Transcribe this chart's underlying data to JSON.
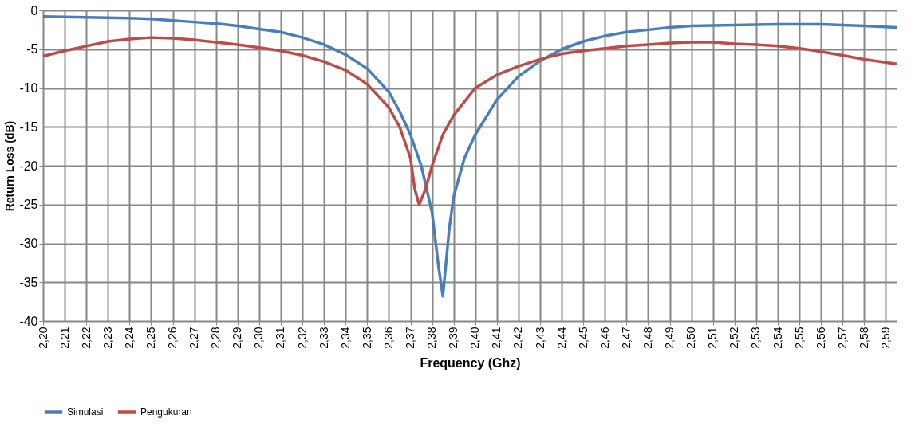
{
  "chart_data": {
    "type": "line",
    "xlabel": "Frequency (Ghz)",
    "ylabel": "Return Loss (dB)",
    "xlim": [
      2.2,
      2.595
    ],
    "ylim": [
      -40,
      0
    ],
    "xticks": [
      {
        "value": 2.2,
        "label": "2,20"
      },
      {
        "value": 2.21,
        "label": "2,21"
      },
      {
        "value": 2.22,
        "label": "2,22"
      },
      {
        "value": 2.23,
        "label": "2,23"
      },
      {
        "value": 2.24,
        "label": "2,24"
      },
      {
        "value": 2.25,
        "label": "2,25"
      },
      {
        "value": 2.26,
        "label": "2,26"
      },
      {
        "value": 2.27,
        "label": "2,27"
      },
      {
        "value": 2.28,
        "label": "2,28"
      },
      {
        "value": 2.29,
        "label": "2,29"
      },
      {
        "value": 2.3,
        "label": "2,30"
      },
      {
        "value": 2.31,
        "label": "2,31"
      },
      {
        "value": 2.32,
        "label": "2,32"
      },
      {
        "value": 2.33,
        "label": "2,33"
      },
      {
        "value": 2.34,
        "label": "2,34"
      },
      {
        "value": 2.35,
        "label": "2,35"
      },
      {
        "value": 2.36,
        "label": "2,36"
      },
      {
        "value": 2.37,
        "label": "2,37"
      },
      {
        "value": 2.38,
        "label": "2,38"
      },
      {
        "value": 2.39,
        "label": "2,39"
      },
      {
        "value": 2.4,
        "label": "2,40"
      },
      {
        "value": 2.41,
        "label": "2,41"
      },
      {
        "value": 2.42,
        "label": "2,42"
      },
      {
        "value": 2.43,
        "label": "2,43"
      },
      {
        "value": 2.44,
        "label": "2,44"
      },
      {
        "value": 2.45,
        "label": "2,45"
      },
      {
        "value": 2.46,
        "label": "2,46"
      },
      {
        "value": 2.47,
        "label": "2,47"
      },
      {
        "value": 2.48,
        "label": "2,48"
      },
      {
        "value": 2.49,
        "label": "2,49"
      },
      {
        "value": 2.5,
        "label": "2,50"
      },
      {
        "value": 2.51,
        "label": "2,51"
      },
      {
        "value": 2.52,
        "label": "2,52"
      },
      {
        "value": 2.53,
        "label": "2,53"
      },
      {
        "value": 2.54,
        "label": "2,54"
      },
      {
        "value": 2.55,
        "label": "2,55"
      },
      {
        "value": 2.56,
        "label": "2,56"
      },
      {
        "value": 2.57,
        "label": "2,57"
      },
      {
        "value": 2.58,
        "label": "2,58"
      },
      {
        "value": 2.59,
        "label": "2,59"
      }
    ],
    "yticks": [
      0,
      -5,
      -10,
      -15,
      -20,
      -25,
      -30,
      -35,
      -40
    ],
    "grid": true,
    "legend": "bottom",
    "marker": "none",
    "series": [
      {
        "name": "Simulasi",
        "color": "#4a7ebb",
        "x": [
          2.2,
          2.22,
          2.24,
          2.25,
          2.26,
          2.27,
          2.28,
          2.29,
          2.3,
          2.31,
          2.32,
          2.33,
          2.34,
          2.35,
          2.36,
          2.365,
          2.37,
          2.375,
          2.38,
          2.383,
          2.385,
          2.388,
          2.39,
          2.395,
          2.4,
          2.41,
          2.42,
          2.43,
          2.44,
          2.45,
          2.46,
          2.47,
          2.48,
          2.49,
          2.5,
          2.52,
          2.54,
          2.56,
          2.57,
          2.58,
          2.595
        ],
        "values": [
          -0.8,
          -0.9,
          -1,
          -1.1,
          -1.3,
          -1.5,
          -1.7,
          -2,
          -2.4,
          -2.8,
          -3.5,
          -4.4,
          -5.7,
          -7.5,
          -10.5,
          -13,
          -16,
          -20,
          -26,
          -33,
          -36.8,
          -28,
          -24,
          -19,
          -16,
          -11.5,
          -8.5,
          -6.5,
          -5,
          -4,
          -3.3,
          -2.8,
          -2.5,
          -2.2,
          -2,
          -1.9,
          -1.8,
          -1.8,
          -1.9,
          -2,
          -2.2
        ]
      },
      {
        "name": "Pengukuran",
        "color": "#be4b48",
        "x": [
          2.2,
          2.21,
          2.22,
          2.23,
          2.24,
          2.25,
          2.26,
          2.27,
          2.28,
          2.29,
          2.3,
          2.31,
          2.32,
          2.33,
          2.34,
          2.35,
          2.36,
          2.365,
          2.37,
          2.372,
          2.374,
          2.377,
          2.38,
          2.385,
          2.39,
          2.4,
          2.41,
          2.42,
          2.43,
          2.44,
          2.45,
          2.46,
          2.47,
          2.48,
          2.49,
          2.5,
          2.51,
          2.52,
          2.53,
          2.54,
          2.55,
          2.56,
          2.57,
          2.58,
          2.595
        ],
        "values": [
          -5.9,
          -5.2,
          -4.6,
          -4,
          -3.7,
          -3.5,
          -3.6,
          -3.8,
          -4.1,
          -4.4,
          -4.8,
          -5.2,
          -5.8,
          -6.6,
          -7.7,
          -9.5,
          -12.5,
          -15,
          -19,
          -23,
          -25,
          -23,
          -20,
          -16,
          -13.5,
          -10,
          -8.3,
          -7.2,
          -6.3,
          -5.6,
          -5.2,
          -4.9,
          -4.6,
          -4.4,
          -4.2,
          -4.1,
          -4.1,
          -4.3,
          -4.4,
          -4.6,
          -4.9,
          -5.3,
          -5.8,
          -6.3,
          -6.9
        ]
      }
    ]
  }
}
